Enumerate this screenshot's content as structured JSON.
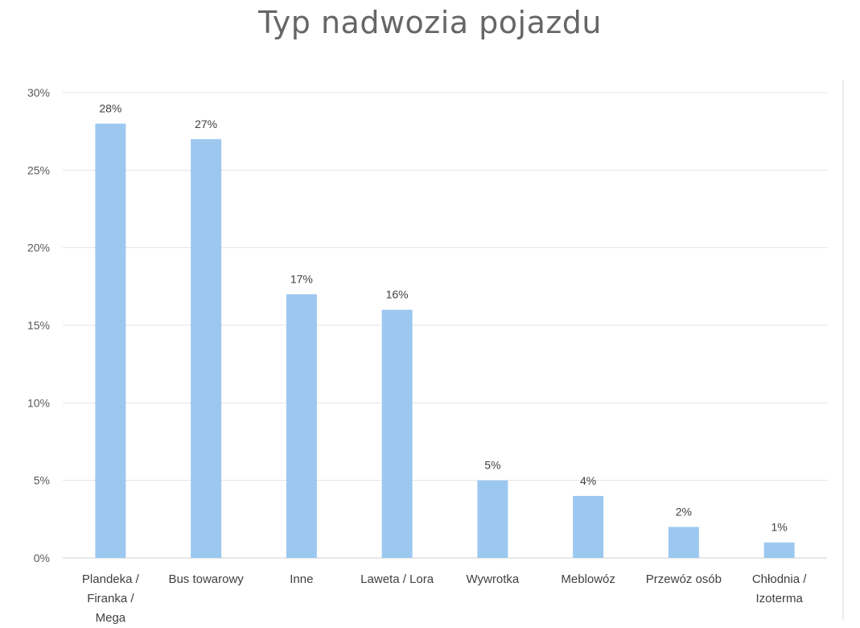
{
  "chart_data": {
    "type": "bar",
    "title": "Typ nadwozia pojazdu",
    "xlabel": "",
    "ylabel": "",
    "ylim": [
      0,
      30
    ],
    "yticks": [
      "0%",
      "5%",
      "10%",
      "15%",
      "20%",
      "25%",
      "30%"
    ],
    "grid": true,
    "legend": "none",
    "bar_color": "#9CC8F0",
    "categories": [
      [
        "Plandeka /",
        "Firanka /",
        "Mega"
      ],
      [
        "Bus towarowy"
      ],
      [
        "Inne"
      ],
      [
        "Laweta / Lora"
      ],
      [
        "Wywrotka"
      ],
      [
        "Meblowóz"
      ],
      [
        "Przewóz osób"
      ],
      [
        "Chłodnia /",
        "Izoterma"
      ]
    ],
    "values": [
      28,
      27,
      17,
      16,
      5,
      4,
      2,
      1
    ],
    "data_labels": [
      "28%",
      "27%",
      "17%",
      "16%",
      "5%",
      "4%",
      "2%",
      "1%"
    ]
  }
}
